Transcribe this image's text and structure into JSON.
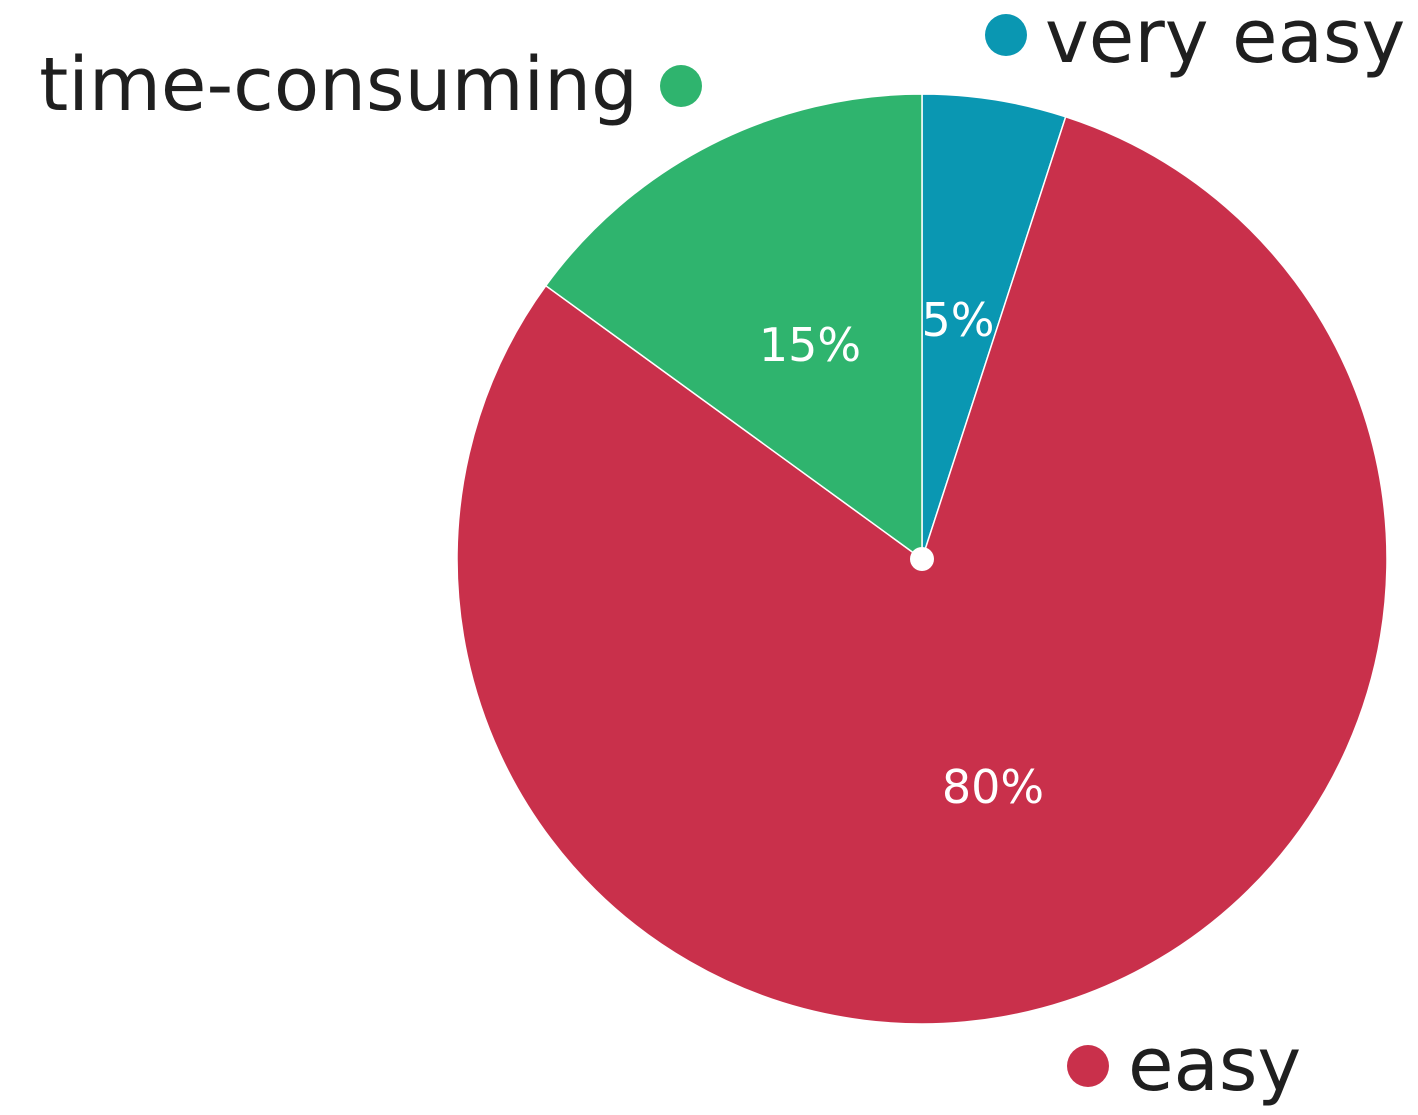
{
  "chart_data": {
    "type": "pie",
    "categories": [
      "very easy",
      "easy",
      "time-consuming"
    ],
    "values": [
      5,
      80,
      15
    ],
    "unit": "%",
    "value_labels": [
      "5%",
      "80%",
      "15%"
    ],
    "colors": [
      "#0a97b2",
      "#c9304b",
      "#2fb46e"
    ],
    "center_dot": true,
    "legend_position": "outside, next to each slice"
  }
}
